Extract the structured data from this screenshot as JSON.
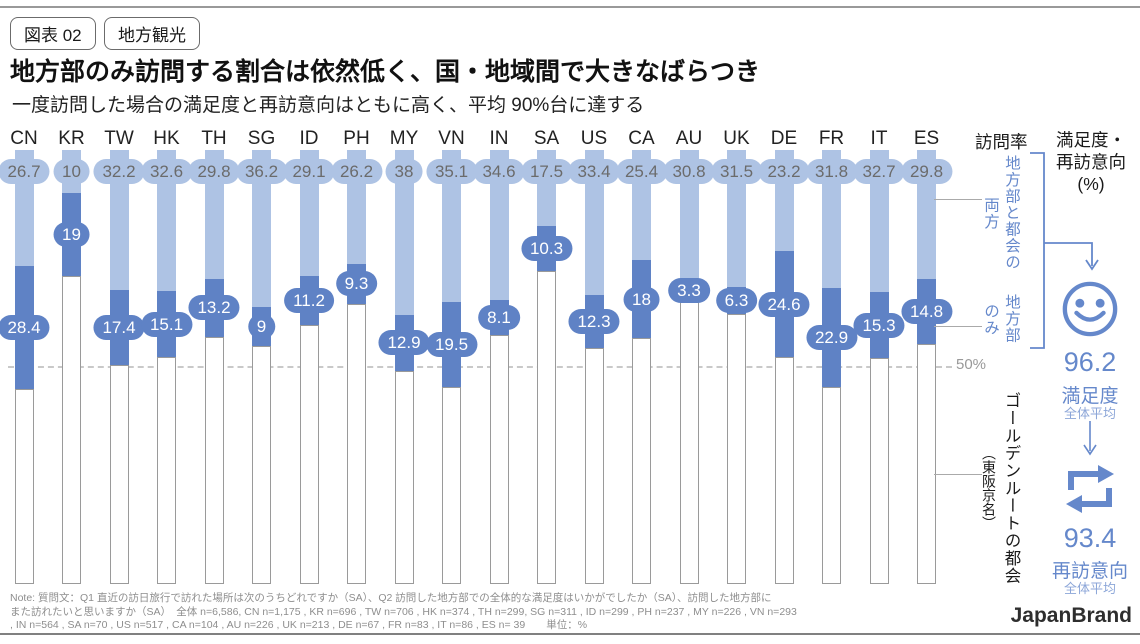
{
  "header": {
    "chip1": "図表 02",
    "chip2": "地方観光",
    "title": "地方部のみ訪問する割合は依然低く、国・地域間で大きなばらつき",
    "subtitle": "一度訪問した場合の満足度と再訪意向はともに高く、平均 90%台に達する"
  },
  "chart_data": {
    "type": "bar",
    "stacked": true,
    "unit": "%",
    "ylim": [
      0,
      100
    ],
    "axis_header": "訪問率",
    "gridline": {
      "value": 50,
      "label": "50%"
    },
    "categories": [
      "CN",
      "KR",
      "TW",
      "HK",
      "TH",
      "SG",
      "ID",
      "PH",
      "MY",
      "VN",
      "IN",
      "SA",
      "US",
      "CA",
      "AU",
      "UK",
      "DE",
      "FR",
      "IT",
      "ES"
    ],
    "series": [
      {
        "name": "地方部と都会の両方",
        "color": "#aec3e4",
        "values": [
          26.7,
          10,
          32.2,
          32.6,
          29.8,
          36.2,
          29.1,
          26.2,
          38,
          35.1,
          34.6,
          17.5,
          33.4,
          25.4,
          30.8,
          31.5,
          23.2,
          31.8,
          32.7,
          29.8
        ]
      },
      {
        "name": "地方部のみ",
        "color": "#5f82c5",
        "values": [
          28.4,
          19,
          17.4,
          15.1,
          13.2,
          9,
          11.2,
          9.3,
          12.9,
          19.5,
          8.1,
          10.3,
          12.3,
          18,
          3.3,
          6.3,
          24.6,
          22.9,
          15.3,
          14.8
        ]
      },
      {
        "name": "ゴールデンルートの都会（東阪京名）",
        "color": "#ffffff",
        "values": [
          44.9,
          71,
          50.4,
          52.3,
          57,
          54.8,
          59.7,
          64.5,
          49.1,
          45.4,
          57.3,
          72.2,
          54.3,
          56.6,
          65.9,
          62.2,
          52.2,
          45.3,
          52,
          55.4
        ]
      }
    ]
  },
  "right_panel": {
    "visit_rate_header": "訪問率",
    "metric_header": {
      "line1": "満足度・",
      "line2": "再訪意向",
      "line3": "(%)"
    },
    "label_both": {
      "main": "地方部と都会の",
      "sub": "両方"
    },
    "label_only": {
      "main": "地方部",
      "sub": "のみ"
    },
    "label_golden": {
      "main": "ゴールデンルートの都会",
      "sub": "（東阪京名）"
    },
    "satisfaction": {
      "value": "96.2",
      "label": "満足度",
      "sublabel": "全体平均"
    },
    "revisit": {
      "value": "93.4",
      "label": "再訪意向",
      "sublabel": "全体平均"
    }
  },
  "footer": {
    "note_line1": "Note: 質問文：Q1 直近の訪日旅行で訪れた場所は次のうちどれですか（SA）、Q2 訪問した地方部での全体的な満足度はいかがでしたか（SA）、訪問した地方部に",
    "note_line2": "また訪れたいと思いますか（SA）　全体 n=6,586, CN n=1,175 , KR n=696 , TW n=706 , HK n=374 , TH n=299, SG n=311 , ID n=299 , PH n=237 , MY n=226 , VN n=293",
    "note_line3": ", IN n=564 , SA n=70 , US n=517 , CA n=104 , AU n=226 , UK n=213 , DE n=67 , FR n=83 , IT n=86 , ES n= 39　　単位：%",
    "brand": "JapanBrand"
  },
  "colors": {
    "both_segment": "#aec3e4",
    "only_segment": "#5f82c5",
    "golden_border": "#9a9a9a",
    "accent_blue": "#6588cb",
    "accent_blue_light": "#8ca6d8",
    "gridline_gray": "#c9c9c9",
    "note_gray": "#8e8e8e"
  }
}
